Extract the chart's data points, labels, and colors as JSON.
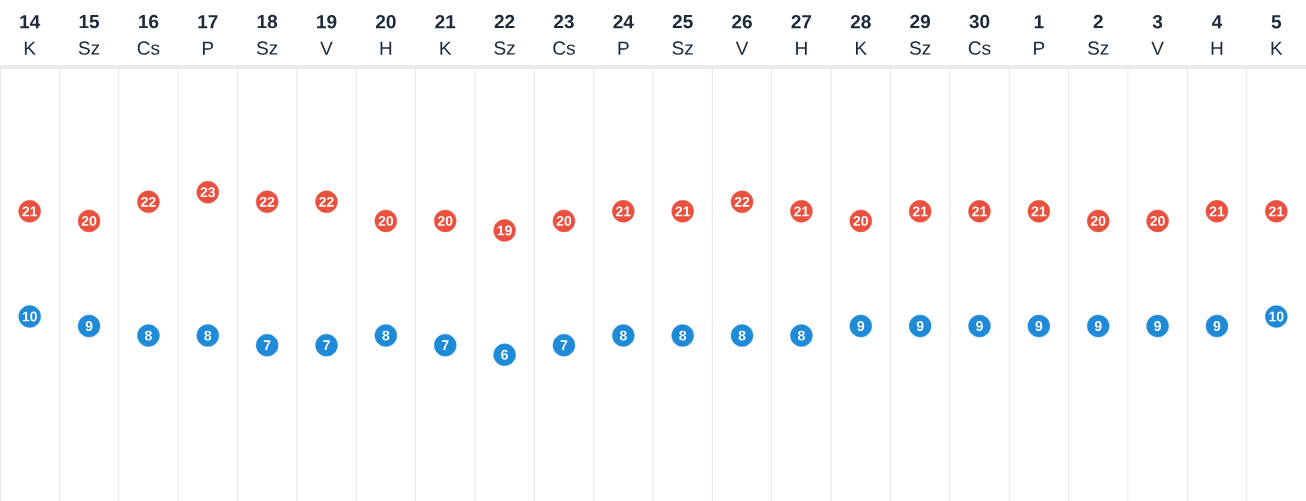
{
  "chart_data": {
    "type": "scatter",
    "categories": [
      "**14** K",
      "**15** Sz",
      "**16** Cs",
      "**17** P",
      "**18** Sz",
      "**19** V",
      "**20** H",
      "**21** K",
      "**22** Sz",
      "**23** Cs",
      "**24** P",
      "**25** Sz",
      "**26** V",
      "**27** H",
      "**28** K",
      "**29** Sz",
      "**30** Cs",
      "**1** P",
      "**2** Sz",
      "**3** V",
      "**4** H",
      "**5** K"
    ],
    "series": [
      {
        "color": "#e9503e",
        "values": [
          21,
          20,
          22,
          23,
          22,
          22,
          20,
          20,
          19,
          20,
          21,
          21,
          22,
          21,
          20,
          21,
          21,
          21,
          20,
          20,
          21,
          21
        ]
      },
      {
        "color": "#1f8bd8",
        "values": [
          10,
          9,
          8,
          8,
          7,
          7,
          8,
          7,
          6,
          7,
          8,
          8,
          8,
          8,
          9,
          9,
          9,
          9,
          9,
          9,
          9,
          10
        ]
      }
    ],
    "ylim": [
      -9.3,
      36.1
    ],
    "tick_labels": "x",
    "data_labels": true,
    "marker": "circle",
    "grid": "x"
  }
}
